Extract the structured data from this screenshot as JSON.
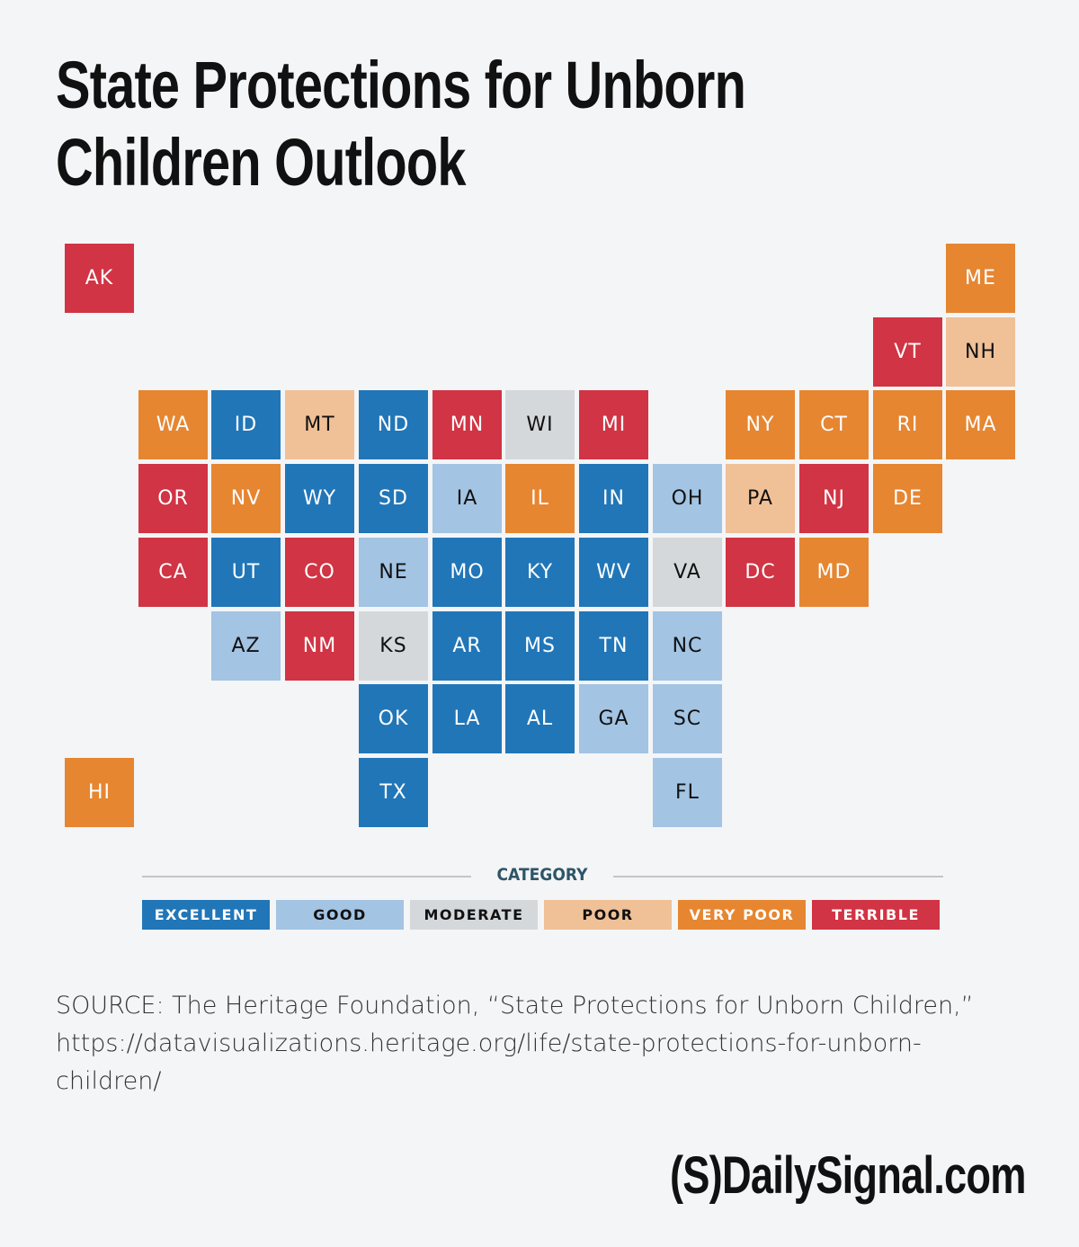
{
  "title": "State Protections for Unborn Children Outlook",
  "categories": {
    "excellent": {
      "label": "EXCELLENT",
      "color": "#2176b8",
      "text": "light"
    },
    "good": {
      "label": "GOOD",
      "color": "#a3c4e3",
      "text": "dark"
    },
    "moderate": {
      "label": "MODERATE",
      "color": "#d5d8db",
      "text": "dark"
    },
    "poor": {
      "label": "POOR",
      "color": "#f0c097",
      "text": "dark"
    },
    "very_poor": {
      "label": "VERY POOR",
      "color": "#e68631",
      "text": "light"
    },
    "terrible": {
      "label": "TERRIBLE",
      "color": "#d13444",
      "text": "light"
    }
  },
  "legend": {
    "title": "CATEGORY",
    "order": [
      "excellent",
      "good",
      "moderate",
      "poor",
      "very_poor",
      "terrible"
    ]
  },
  "states": [
    {
      "abbr": "AK",
      "row": 0,
      "col": 0,
      "category": "terrible"
    },
    {
      "abbr": "ME",
      "row": 0,
      "col": 12,
      "category": "very_poor"
    },
    {
      "abbr": "VT",
      "row": 1,
      "col": 11,
      "category": "terrible"
    },
    {
      "abbr": "NH",
      "row": 1,
      "col": 12,
      "category": "poor"
    },
    {
      "abbr": "WA",
      "row": 2,
      "col": 1,
      "category": "very_poor"
    },
    {
      "abbr": "ID",
      "row": 2,
      "col": 2,
      "category": "excellent"
    },
    {
      "abbr": "MT",
      "row": 2,
      "col": 3,
      "category": "poor"
    },
    {
      "abbr": "ND",
      "row": 2,
      "col": 4,
      "category": "excellent"
    },
    {
      "abbr": "MN",
      "row": 2,
      "col": 5,
      "category": "terrible"
    },
    {
      "abbr": "WI",
      "row": 2,
      "col": 6,
      "category": "moderate"
    },
    {
      "abbr": "MI",
      "row": 2,
      "col": 7,
      "category": "terrible"
    },
    {
      "abbr": "NY",
      "row": 2,
      "col": 9,
      "category": "very_poor"
    },
    {
      "abbr": "CT",
      "row": 2,
      "col": 10,
      "category": "very_poor"
    },
    {
      "abbr": "RI",
      "row": 2,
      "col": 11,
      "category": "very_poor"
    },
    {
      "abbr": "MA",
      "row": 2,
      "col": 12,
      "category": "very_poor"
    },
    {
      "abbr": "OR",
      "row": 3,
      "col": 1,
      "category": "terrible"
    },
    {
      "abbr": "NV",
      "row": 3,
      "col": 2,
      "category": "very_poor"
    },
    {
      "abbr": "WY",
      "row": 3,
      "col": 3,
      "category": "excellent"
    },
    {
      "abbr": "SD",
      "row": 3,
      "col": 4,
      "category": "excellent"
    },
    {
      "abbr": "IA",
      "row": 3,
      "col": 5,
      "category": "good"
    },
    {
      "abbr": "IL",
      "row": 3,
      "col": 6,
      "category": "very_poor"
    },
    {
      "abbr": "IN",
      "row": 3,
      "col": 7,
      "category": "excellent"
    },
    {
      "abbr": "OH",
      "row": 3,
      "col": 8,
      "category": "good"
    },
    {
      "abbr": "PA",
      "row": 3,
      "col": 9,
      "category": "poor"
    },
    {
      "abbr": "NJ",
      "row": 3,
      "col": 10,
      "category": "terrible"
    },
    {
      "abbr": "DE",
      "row": 3,
      "col": 11,
      "category": "very_poor"
    },
    {
      "abbr": "CA",
      "row": 4,
      "col": 1,
      "category": "terrible"
    },
    {
      "abbr": "UT",
      "row": 4,
      "col": 2,
      "category": "excellent"
    },
    {
      "abbr": "CO",
      "row": 4,
      "col": 3,
      "category": "terrible"
    },
    {
      "abbr": "NE",
      "row": 4,
      "col": 4,
      "category": "good"
    },
    {
      "abbr": "MO",
      "row": 4,
      "col": 5,
      "category": "excellent"
    },
    {
      "abbr": "KY",
      "row": 4,
      "col": 6,
      "category": "excellent"
    },
    {
      "abbr": "WV",
      "row": 4,
      "col": 7,
      "category": "excellent"
    },
    {
      "abbr": "VA",
      "row": 4,
      "col": 8,
      "category": "moderate"
    },
    {
      "abbr": "DC",
      "row": 4,
      "col": 9,
      "category": "terrible"
    },
    {
      "abbr": "MD",
      "row": 4,
      "col": 10,
      "category": "very_poor"
    },
    {
      "abbr": "AZ",
      "row": 5,
      "col": 2,
      "category": "good"
    },
    {
      "abbr": "NM",
      "row": 5,
      "col": 3,
      "category": "terrible"
    },
    {
      "abbr": "KS",
      "row": 5,
      "col": 4,
      "category": "moderate"
    },
    {
      "abbr": "AR",
      "row": 5,
      "col": 5,
      "category": "excellent"
    },
    {
      "abbr": "MS",
      "row": 5,
      "col": 6,
      "category": "excellent"
    },
    {
      "abbr": "TN",
      "row": 5,
      "col": 7,
      "category": "excellent"
    },
    {
      "abbr": "NC",
      "row": 5,
      "col": 8,
      "category": "good"
    },
    {
      "abbr": "OK",
      "row": 6,
      "col": 4,
      "category": "excellent"
    },
    {
      "abbr": "LA",
      "row": 6,
      "col": 5,
      "category": "excellent"
    },
    {
      "abbr": "AL",
      "row": 6,
      "col": 6,
      "category": "excellent"
    },
    {
      "abbr": "GA",
      "row": 6,
      "col": 7,
      "category": "good"
    },
    {
      "abbr": "SC",
      "row": 6,
      "col": 8,
      "category": "good"
    },
    {
      "abbr": "HI",
      "row": 7,
      "col": 0,
      "category": "very_poor"
    },
    {
      "abbr": "TX",
      "row": 7,
      "col": 4,
      "category": "excellent"
    },
    {
      "abbr": "FL",
      "row": 7,
      "col": 8,
      "category": "good"
    }
  ],
  "source": "SOURCE: The Heritage Foundation, “State Protections for Unborn Children,” https://datavisualizations.heritage.org/life/state-protections-for-unborn-children/",
  "brand": "(S)DailySignal.com"
}
